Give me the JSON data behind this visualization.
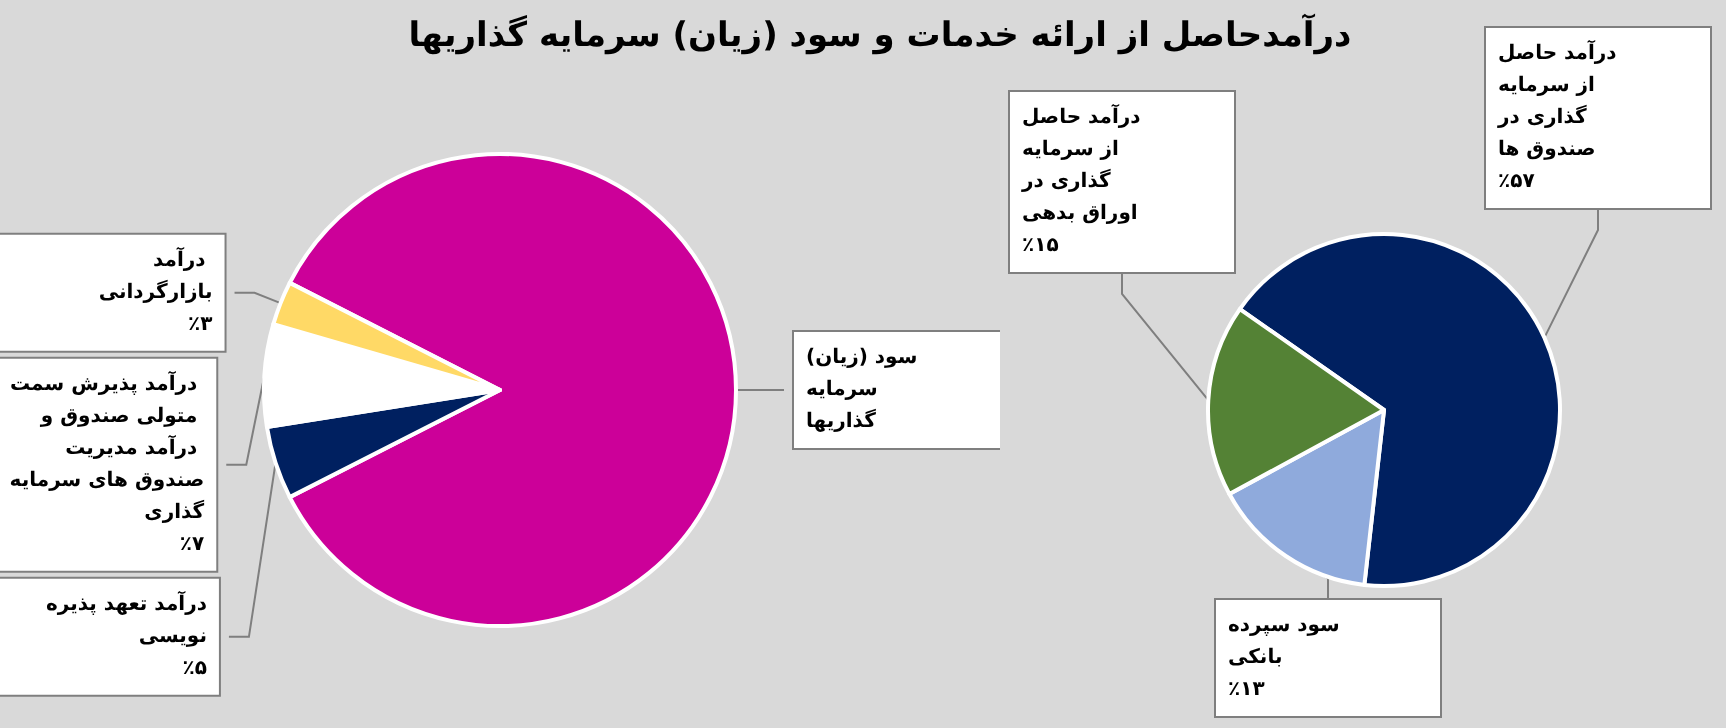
{
  "chart_data": [
    {
      "type": "pie",
      "title": "درآمدحاصل از ارائه خدمات و سود (زیان) سرمایه گذاریها",
      "categories": [
        "سود (زیان) سرمایه گذاریها",
        "درآمد تعهد پذیره نویسی",
        "درآمد پذیرش سمت متولی صندوق و درآمد مدیریت صندوق های سرمایه گذاری",
        "درآمد بازارگردانی"
      ],
      "values": [
        85,
        5,
        7,
        3
      ],
      "value_labels": [
        null,
        "٪۵",
        "٪۷",
        "٪۳"
      ],
      "colors": [
        "#cc0099",
        "#002060",
        "#ffffff",
        "#ffd966"
      ],
      "legend": false
    },
    {
      "type": "pie",
      "categories": [
        "درآمد حاصل از سرمایه گذاری در صندوق ها",
        "سود سپرده بانکی",
        "درآمد حاصل از سرمایه گذاری در اوراق بدهی"
      ],
      "values": [
        57,
        13,
        15
      ],
      "value_labels": [
        "٪۵۷",
        "٪۱۳",
        "٪۱۵"
      ],
      "colors": [
        "#002060",
        "#8faadc",
        "#548235"
      ],
      "legend": false
    }
  ]
}
